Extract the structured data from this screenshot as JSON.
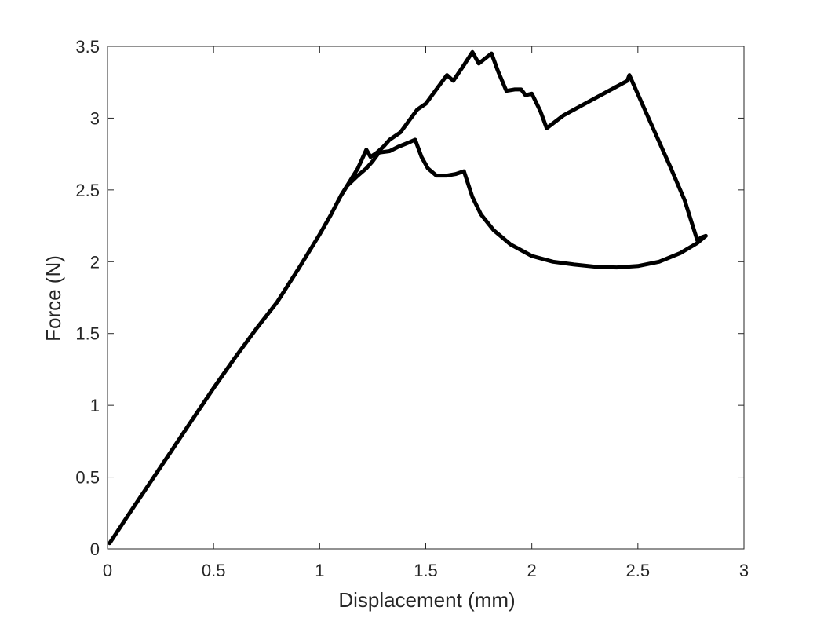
{
  "chart_data": {
    "type": "line",
    "title": "",
    "xlabel": "Displacement (mm)",
    "ylabel": "Force (N)",
    "xlim": [
      0,
      3
    ],
    "ylim": [
      0,
      3.5
    ],
    "xticks": [
      0,
      0.5,
      1,
      1.5,
      2,
      2.5,
      3
    ],
    "yticks": [
      0,
      0.5,
      1,
      1.5,
      2,
      2.5,
      3,
      3.5
    ],
    "xtick_labels": [
      "0",
      "0.5",
      "1",
      "1.5",
      "2",
      "2.5",
      "3"
    ],
    "ytick_labels": [
      "0",
      "0.5",
      "1",
      "1.5",
      "2",
      "2.5",
      "3",
      "3.5"
    ],
    "grid": false,
    "line_color": "#000000",
    "series": [
      {
        "x": [
          0.01,
          0.1,
          0.2,
          0.3,
          0.4,
          0.5,
          0.6,
          0.7,
          0.8,
          0.9,
          1.0,
          1.05,
          1.1,
          1.13,
          1.18,
          1.22,
          1.25,
          1.28,
          1.33,
          1.37,
          1.42,
          1.45,
          1.48,
          1.51,
          1.55,
          1.6,
          1.64,
          1.68,
          1.72,
          1.76,
          1.82,
          1.9,
          2.0,
          2.1,
          2.2,
          2.3,
          2.4,
          2.5,
          2.6,
          2.7,
          2.78,
          2.82
        ],
        "y": [
          0.04,
          0.24,
          0.46,
          0.68,
          0.9,
          1.12,
          1.33,
          1.53,
          1.72,
          1.95,
          2.19,
          2.32,
          2.46,
          2.53,
          2.6,
          2.65,
          2.7,
          2.76,
          2.77,
          2.8,
          2.83,
          2.85,
          2.73,
          2.65,
          2.6,
          2.6,
          2.61,
          2.63,
          2.45,
          2.33,
          2.22,
          2.12,
          2.04,
          2.0,
          1.98,
          1.965,
          1.96,
          1.97,
          2.0,
          2.06,
          2.13,
          2.18
        ]
      },
      {
        "x": [
          1.1,
          1.18,
          1.22,
          1.24,
          1.27,
          1.3,
          1.33,
          1.38,
          1.46,
          1.5,
          1.56,
          1.6,
          1.63,
          1.68,
          1.72,
          1.75,
          1.81,
          1.84,
          1.88,
          1.92,
          1.95,
          1.97,
          2.0,
          2.04,
          2.07,
          2.15,
          2.25,
          2.35,
          2.45,
          2.46,
          2.55,
          2.65,
          2.72,
          2.78,
          2.8,
          2.82
        ],
        "y": [
          2.46,
          2.65,
          2.78,
          2.73,
          2.76,
          2.8,
          2.85,
          2.9,
          3.06,
          3.1,
          3.22,
          3.3,
          3.26,
          3.37,
          3.46,
          3.38,
          3.45,
          3.33,
          3.19,
          3.2,
          3.2,
          3.16,
          3.17,
          3.05,
          2.93,
          3.02,
          3.1,
          3.18,
          3.26,
          3.3,
          3.0,
          2.67,
          2.43,
          2.15,
          2.17,
          2.18
        ]
      }
    ]
  }
}
